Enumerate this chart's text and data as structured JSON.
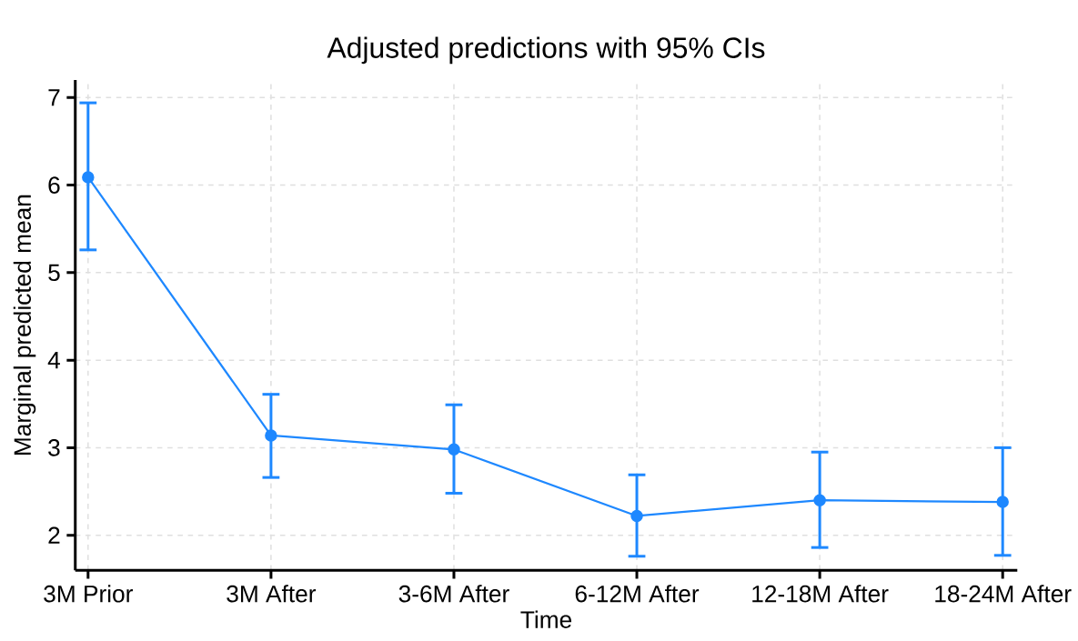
{
  "chart_data": {
    "type": "line",
    "title": "Adjusted predictions with 95% CIs",
    "xlabel": "Time",
    "ylabel": "Marginal predicted mean",
    "categories": [
      "3M Prior",
      "3M After",
      "3-6M After",
      "6-12M After",
      "12-18M After",
      "18-24M After"
    ],
    "series": [
      {
        "color": "#1e88ff",
        "values": [
          6.09,
          3.14,
          2.98,
          2.22,
          2.4,
          2.38
        ],
        "errors": [
          [
            5.26,
            6.94
          ],
          [
            2.66,
            3.61
          ],
          [
            2.48,
            3.49
          ],
          [
            1.76,
            2.69
          ],
          [
            1.86,
            2.95
          ],
          [
            1.77,
            3.0
          ]
        ]
      }
    ],
    "ylim": [
      1.6,
      7.2
    ],
    "yticks": [
      2,
      3,
      4,
      5,
      6,
      7
    ],
    "grid": true,
    "marker": "circle",
    "line_style": "solid"
  }
}
